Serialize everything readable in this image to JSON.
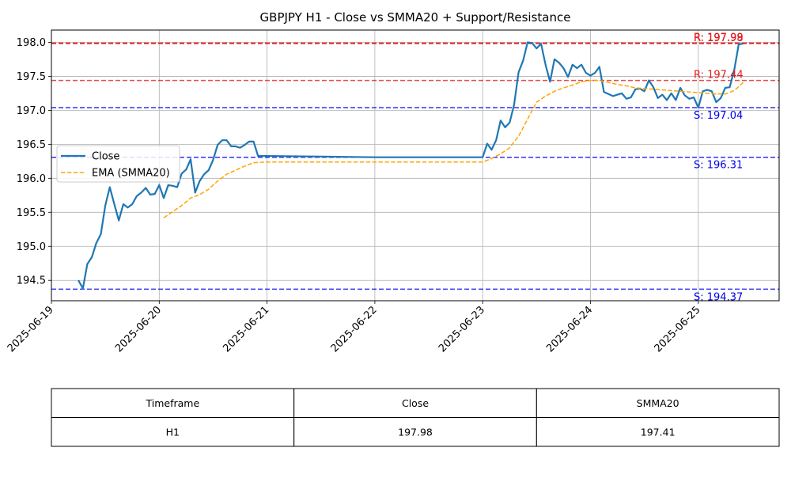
{
  "chart_data": {
    "type": "line",
    "title": "GBPJPY H1 - Close vs SMMA20 + Support/Resistance",
    "xlabel": "",
    "ylabel": "",
    "xlim": [
      "2025-06-19 00:00",
      "2025-06-25 18:00"
    ],
    "ylim": [
      194.2,
      198.18
    ],
    "grid": true,
    "x_ticks": [
      "2025-06-19",
      "2025-06-20",
      "2025-06-21",
      "2025-06-22",
      "2025-06-23",
      "2025-06-24",
      "2025-06-25"
    ],
    "y_ticks": [
      "194.5",
      "195.0",
      "195.5",
      "196.0",
      "196.5",
      "197.0",
      "197.5",
      "198.0"
    ],
    "legend": {
      "position": "center-left",
      "entries": [
        {
          "label": "Close",
          "color": "#1f77b4",
          "style": "solid"
        },
        {
          "label": "EMA (SMMA20)",
          "color": "#ffa500",
          "style": "dashed"
        }
      ]
    },
    "series": [
      {
        "name": "Close",
        "color": "#1f77b4",
        "style": "solid",
        "points": [
          [
            "2025-06-19 06:00",
            194.5
          ],
          [
            "2025-06-19 07:00",
            194.38
          ],
          [
            "2025-06-19 08:00",
            194.74
          ],
          [
            "2025-06-19 09:00",
            194.84
          ],
          [
            "2025-06-19 10:00",
            195.05
          ],
          [
            "2025-06-19 11:00",
            195.18
          ],
          [
            "2025-06-19 12:00",
            195.6
          ],
          [
            "2025-06-19 13:00",
            195.87
          ],
          [
            "2025-06-19 14:00",
            195.62
          ],
          [
            "2025-06-19 15:00",
            195.38
          ],
          [
            "2025-06-19 16:00",
            195.62
          ],
          [
            "2025-06-19 17:00",
            195.57
          ],
          [
            "2025-06-19 18:00",
            195.62
          ],
          [
            "2025-06-19 19:00",
            195.74
          ],
          [
            "2025-06-19 20:00",
            195.79
          ],
          [
            "2025-06-19 21:00",
            195.86
          ],
          [
            "2025-06-19 22:00",
            195.76
          ],
          [
            "2025-06-19 23:00",
            195.77
          ],
          [
            "2025-06-20 00:00",
            195.9
          ],
          [
            "2025-06-20 01:00",
            195.71
          ],
          [
            "2025-06-20 02:00",
            195.9
          ],
          [
            "2025-06-20 03:00",
            195.89
          ],
          [
            "2025-06-20 04:00",
            195.87
          ],
          [
            "2025-06-20 05:00",
            196.07
          ],
          [
            "2025-06-20 06:00",
            196.13
          ],
          [
            "2025-06-20 07:00",
            196.28
          ],
          [
            "2025-06-20 08:00",
            195.79
          ],
          [
            "2025-06-20 09:00",
            195.96
          ],
          [
            "2025-06-20 10:00",
            196.06
          ],
          [
            "2025-06-20 11:00",
            196.12
          ],
          [
            "2025-06-20 12:00",
            196.27
          ],
          [
            "2025-06-20 13:00",
            196.49
          ],
          [
            "2025-06-20 14:00",
            196.56
          ],
          [
            "2025-06-20 15:00",
            196.56
          ],
          [
            "2025-06-20 16:00",
            196.47
          ],
          [
            "2025-06-20 17:00",
            196.47
          ],
          [
            "2025-06-20 18:00",
            196.45
          ],
          [
            "2025-06-20 19:00",
            196.49
          ],
          [
            "2025-06-20 20:00",
            196.54
          ],
          [
            "2025-06-20 21:00",
            196.54
          ],
          [
            "2025-06-20 22:00",
            196.33
          ],
          [
            "2025-06-21 12:00",
            196.32
          ],
          [
            "2025-06-22 00:00",
            196.31
          ],
          [
            "2025-06-23 00:00",
            196.31
          ],
          [
            "2025-06-23 01:00",
            196.51
          ],
          [
            "2025-06-23 02:00",
            196.42
          ],
          [
            "2025-06-23 03:00",
            196.56
          ],
          [
            "2025-06-23 04:00",
            196.85
          ],
          [
            "2025-06-23 05:00",
            196.75
          ],
          [
            "2025-06-23 06:00",
            196.82
          ],
          [
            "2025-06-23 07:00",
            197.08
          ],
          [
            "2025-06-23 08:00",
            197.56
          ],
          [
            "2025-06-23 09:00",
            197.73
          ],
          [
            "2025-06-23 10:00",
            198.0
          ],
          [
            "2025-06-23 11:00",
            197.99
          ],
          [
            "2025-06-23 12:00",
            197.91
          ],
          [
            "2025-06-23 13:00",
            197.98
          ],
          [
            "2025-06-23 14:00",
            197.67
          ],
          [
            "2025-06-23 15:00",
            197.42
          ],
          [
            "2025-06-23 16:00",
            197.75
          ],
          [
            "2025-06-23 17:00",
            197.7
          ],
          [
            "2025-06-23 18:00",
            197.62
          ],
          [
            "2025-06-23 19:00",
            197.49
          ],
          [
            "2025-06-23 20:00",
            197.67
          ],
          [
            "2025-06-23 21:00",
            197.62
          ],
          [
            "2025-06-23 22:00",
            197.67
          ],
          [
            "2025-06-23 23:00",
            197.55
          ],
          [
            "2025-06-24 00:00",
            197.51
          ],
          [
            "2025-06-24 01:00",
            197.55
          ],
          [
            "2025-06-24 02:00",
            197.64
          ],
          [
            "2025-06-24 03:00",
            197.27
          ],
          [
            "2025-06-24 04:00",
            197.24
          ],
          [
            "2025-06-24 05:00",
            197.21
          ],
          [
            "2025-06-24 06:00",
            197.23
          ],
          [
            "2025-06-24 07:00",
            197.25
          ],
          [
            "2025-06-24 08:00",
            197.17
          ],
          [
            "2025-06-24 09:00",
            197.19
          ],
          [
            "2025-06-24 10:00",
            197.31
          ],
          [
            "2025-06-24 11:00",
            197.32
          ],
          [
            "2025-06-24 12:00",
            197.28
          ],
          [
            "2025-06-24 13:00",
            197.44
          ],
          [
            "2025-06-24 14:00",
            197.34
          ],
          [
            "2025-06-24 15:00",
            197.18
          ],
          [
            "2025-06-24 16:00",
            197.23
          ],
          [
            "2025-06-24 17:00",
            197.15
          ],
          [
            "2025-06-24 18:00",
            197.25
          ],
          [
            "2025-06-24 19:00",
            197.15
          ],
          [
            "2025-06-24 20:00",
            197.33
          ],
          [
            "2025-06-24 21:00",
            197.22
          ],
          [
            "2025-06-24 22:00",
            197.17
          ],
          [
            "2025-06-24 23:00",
            197.19
          ],
          [
            "2025-06-25 00:00",
            197.04
          ],
          [
            "2025-06-25 01:00",
            197.28
          ],
          [
            "2025-06-25 02:00",
            197.3
          ],
          [
            "2025-06-25 03:00",
            197.28
          ],
          [
            "2025-06-25 04:00",
            197.12
          ],
          [
            "2025-06-25 05:00",
            197.18
          ],
          [
            "2025-06-25 06:00",
            197.33
          ],
          [
            "2025-06-25 07:00",
            197.34
          ],
          [
            "2025-06-25 08:00",
            197.59
          ],
          [
            "2025-06-25 09:00",
            197.97
          ],
          [
            "2025-06-25 10:00",
            197.98
          ]
        ]
      },
      {
        "name": "EMA (SMMA20)",
        "color": "#ffa500",
        "style": "dashed",
        "points": [
          [
            "2025-06-20 01:00",
            195.42
          ],
          [
            "2025-06-20 03:00",
            195.51
          ],
          [
            "2025-06-20 05:00",
            195.6
          ],
          [
            "2025-06-20 07:00",
            195.71
          ],
          [
            "2025-06-20 09:00",
            195.76
          ],
          [
            "2025-06-20 11:00",
            195.84
          ],
          [
            "2025-06-20 13:00",
            195.96
          ],
          [
            "2025-06-20 15:00",
            196.06
          ],
          [
            "2025-06-20 17:00",
            196.12
          ],
          [
            "2025-06-20 19:00",
            196.18
          ],
          [
            "2025-06-20 21:00",
            196.23
          ],
          [
            "2025-06-21 00:00",
            196.24
          ],
          [
            "2025-06-22 00:00",
            196.24
          ],
          [
            "2025-06-23 00:00",
            196.24
          ],
          [
            "2025-06-23 02:00",
            196.29
          ],
          [
            "2025-06-23 04:00",
            196.36
          ],
          [
            "2025-06-23 06:00",
            196.45
          ],
          [
            "2025-06-23 08:00",
            196.62
          ],
          [
            "2025-06-23 10:00",
            196.87
          ],
          [
            "2025-06-23 12:00",
            197.12
          ],
          [
            "2025-06-23 14:00",
            197.21
          ],
          [
            "2025-06-23 16:00",
            197.28
          ],
          [
            "2025-06-23 18:00",
            197.33
          ],
          [
            "2025-06-23 20:00",
            197.37
          ],
          [
            "2025-06-23 22:00",
            197.42
          ],
          [
            "2025-06-24 00:00",
            197.44
          ],
          [
            "2025-06-24 02:00",
            197.44
          ],
          [
            "2025-06-24 04:00",
            197.41
          ],
          [
            "2025-06-24 06:00",
            197.38
          ],
          [
            "2025-06-24 08:00",
            197.36
          ],
          [
            "2025-06-24 10:00",
            197.33
          ],
          [
            "2025-06-24 12:00",
            197.32
          ],
          [
            "2025-06-24 14:00",
            197.31
          ],
          [
            "2025-06-24 16:00",
            197.3
          ],
          [
            "2025-06-24 18:00",
            197.29
          ],
          [
            "2025-06-24 20:00",
            197.28
          ],
          [
            "2025-06-24 22:00",
            197.27
          ],
          [
            "2025-06-25 00:00",
            197.26
          ],
          [
            "2025-06-25 02:00",
            197.25
          ],
          [
            "2025-06-25 04:00",
            197.24
          ],
          [
            "2025-06-25 06:00",
            197.24
          ],
          [
            "2025-06-25 08:00",
            197.29
          ],
          [
            "2025-06-25 10:00",
            197.41
          ]
        ]
      }
    ],
    "levels": [
      {
        "kind": "resistance",
        "value": 197.99,
        "label": "R: 197.99",
        "color": "#e31a1c"
      },
      {
        "kind": "resistance",
        "value": 197.98,
        "label": "R: 197.98",
        "color": "#e31a1c"
      },
      {
        "kind": "resistance",
        "value": 197.44,
        "label": "R: 197.44",
        "color": "#e31a1c"
      },
      {
        "kind": "support",
        "value": 197.04,
        "label": "S: 197.04",
        "color": "#0000ee"
      },
      {
        "kind": "support",
        "value": 196.31,
        "label": "S: 196.31",
        "color": "#0000ee"
      },
      {
        "kind": "support",
        "value": 194.37,
        "label": "S: 194.37",
        "color": "#0000ee"
      }
    ]
  },
  "table": {
    "headers": [
      "Timeframe",
      "Close",
      "SMMA20"
    ],
    "rows": [
      [
        "H1",
        "197.98",
        "197.41"
      ]
    ]
  }
}
